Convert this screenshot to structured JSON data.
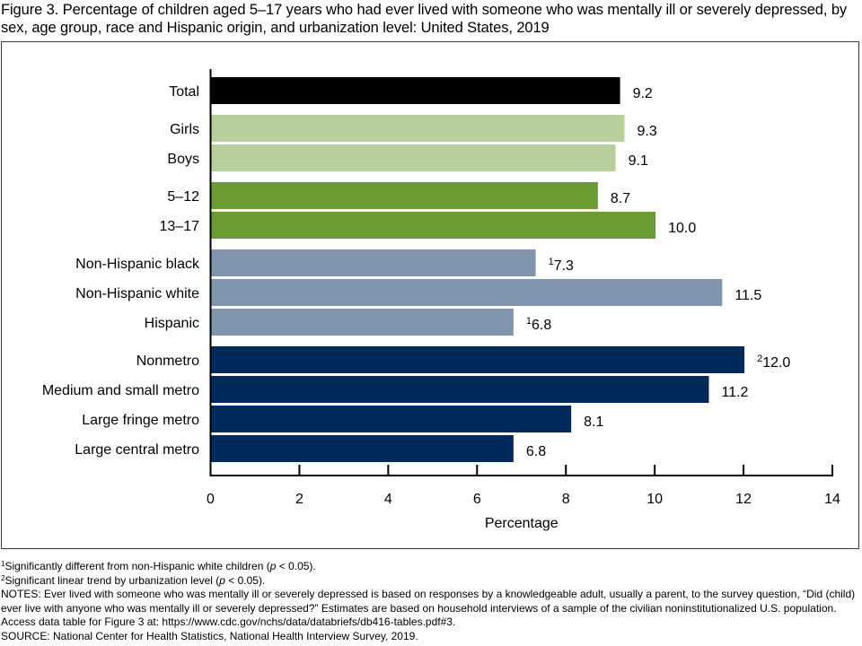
{
  "chart_data": {
    "type": "bar",
    "orientation": "horizontal",
    "title": "Figure 3. Percentage of children aged 5–17 years who had ever lived with someone who was mentally ill or severely depressed, by sex, age group, race and Hispanic origin, and urbanization level: United States, 2019",
    "xlabel": "Percentage",
    "ylabel": "",
    "xlim": [
      0,
      14
    ],
    "xticks": [
      0,
      2,
      4,
      6,
      8,
      10,
      12,
      14
    ],
    "grid": false,
    "legend": "none",
    "groups": [
      {
        "name": "Total",
        "color": "#000000",
        "bars": [
          {
            "label": "Total",
            "value": 9.2,
            "value_label": "9.2",
            "note": ""
          }
        ]
      },
      {
        "name": "Sex",
        "color": "#b7d09b",
        "bars": [
          {
            "label": "Girls",
            "value": 9.3,
            "value_label": "9.3",
            "note": ""
          },
          {
            "label": "Boys",
            "value": 9.1,
            "value_label": "9.1",
            "note": ""
          }
        ]
      },
      {
        "name": "Age group",
        "color": "#6b9b32",
        "bars": [
          {
            "label": "5–12",
            "value": 8.7,
            "value_label": "8.7",
            "note": ""
          },
          {
            "label": "13–17",
            "value": 10.0,
            "value_label": "10.0",
            "note": ""
          }
        ]
      },
      {
        "name": "Race and Hispanic origin",
        "color": "#8094ad",
        "bars": [
          {
            "label": "Non-Hispanic black",
            "value": 7.3,
            "value_label": "7.3",
            "note": "1"
          },
          {
            "label": "Non-Hispanic white",
            "value": 11.5,
            "value_label": "11.5",
            "note": ""
          },
          {
            "label": "Hispanic",
            "value": 6.8,
            "value_label": "6.8",
            "note": "1"
          }
        ]
      },
      {
        "name": "Urbanization level",
        "color": "#002a5c",
        "bars": [
          {
            "label": "Nonmetro",
            "value": 12.0,
            "value_label": "12.0",
            "note": "2"
          },
          {
            "label": "Medium and small metro",
            "value": 11.2,
            "value_label": "11.2",
            "note": ""
          },
          {
            "label": "Large fringe metro",
            "value": 8.1,
            "value_label": "8.1",
            "note": ""
          },
          {
            "label": "Large central metro",
            "value": 6.8,
            "value_label": "6.8",
            "note": ""
          }
        ]
      }
    ]
  },
  "footnotes": [
    {
      "mark": "1",
      "text_before": "Significantly different from non-Hispanic white children (",
      "italic": "p",
      "text_after": " < 0.05)."
    },
    {
      "mark": "2",
      "text_before": "Significant linear trend by urbanization level (",
      "italic": "p",
      "text_after": " < 0.05)."
    }
  ],
  "notes": "NOTES: Ever lived with someone who was mentally ill or severely depressed is based on responses by a knowledgeable adult, usually a parent, to the survey question, “Did (child) ever live with anyone who was mentally ill or severely depressed?” Estimates are based on household interviews of a sample of the civilian noninstitutionalized U.S. population. Access data table for Figure 3 at: https://www.cdc.gov/nchs/data/databriefs/db416-tables.pdf#3.",
  "source": "SOURCE: National Center for Health Statistics, National Health Interview Survey, 2019."
}
